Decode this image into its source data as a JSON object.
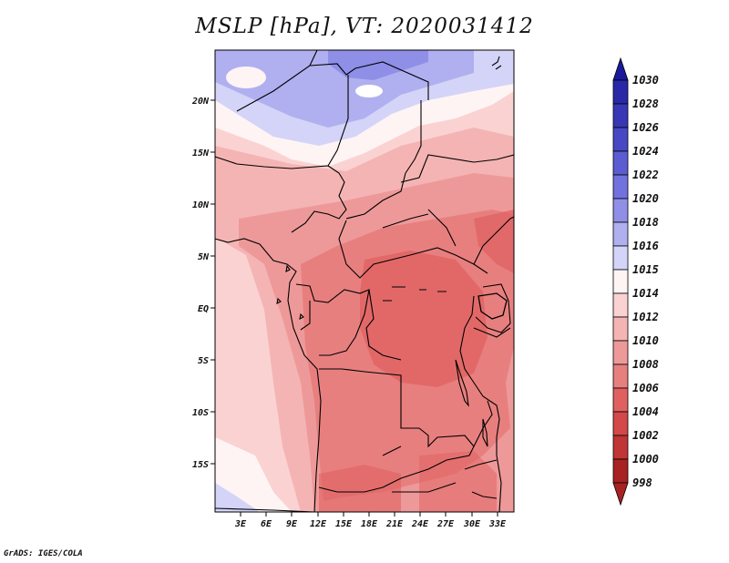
{
  "title": "MSLP [hPa], VT: 2020031412",
  "credit": "GrADS: IGES/COLA",
  "map": {
    "lat_labels": [
      "20N",
      "15N",
      "10N",
      "5N",
      "EQ",
      "5S",
      "10S",
      "15S"
    ],
    "lon_labels": [
      "3E",
      "6E",
      "9E",
      "12E",
      "15E",
      "18E",
      "21E",
      "24E",
      "27E",
      "30E",
      "33E"
    ]
  },
  "colorbar": {
    "labels": [
      "1030",
      "1028",
      "1026",
      "1024",
      "1022",
      "1020",
      "1018",
      "1016",
      "1015",
      "1014",
      "1012",
      "1010",
      "1008",
      "1006",
      "1004",
      "1002",
      "1000",
      "998"
    ],
    "colors": [
      "#1a1a9a",
      "#2929a8",
      "#3838b6",
      "#4848c4",
      "#5c5cd2",
      "#7272de",
      "#8f8fe8",
      "#b0b0f0",
      "#d4d4f8",
      "#fff4f4",
      "#fbd2d2",
      "#f5b4b4",
      "#ee9999",
      "#e87f7f",
      "#e06060",
      "#d34848",
      "#c03535",
      "#a82222"
    ]
  }
}
